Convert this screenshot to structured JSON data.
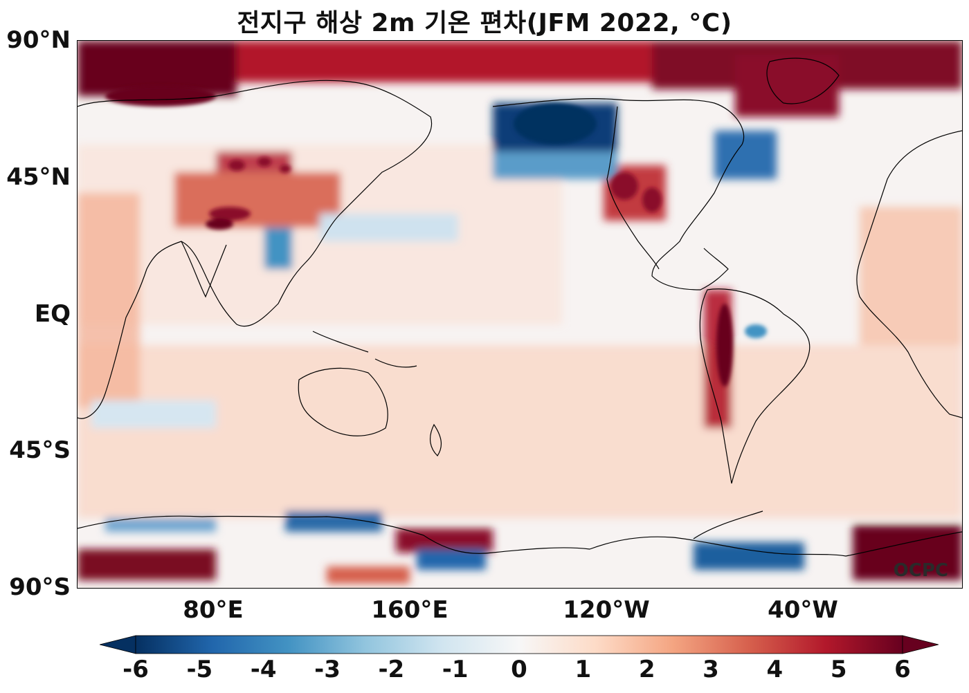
{
  "title": "전지구 해상 2m 기온 편차(JFM 2022, °C)",
  "watermark": "OCPC",
  "lat_labels": [
    "90°N",
    "45°N",
    "EQ",
    "45°S",
    "90°S"
  ],
  "lon_labels": [
    "80°E",
    "160°E",
    "120°W",
    "40°W"
  ],
  "colorbar": {
    "ticks": [
      "-6",
      "-5",
      "-4",
      "-3",
      "-2",
      "-1",
      "0",
      "1",
      "2",
      "3",
      "4",
      "5",
      "6"
    ],
    "min": -6,
    "max": 6,
    "colors": [
      "#053061",
      "#2166ac",
      "#4393c3",
      "#92c5de",
      "#d1e5f0",
      "#f7f7f7",
      "#fddbc7",
      "#f4a582",
      "#d6604d",
      "#b2182b",
      "#67001f"
    ]
  },
  "colors": {
    "cold": "#08306b",
    "warm": "#67001f",
    "neutral": "#f7f4f2"
  }
}
